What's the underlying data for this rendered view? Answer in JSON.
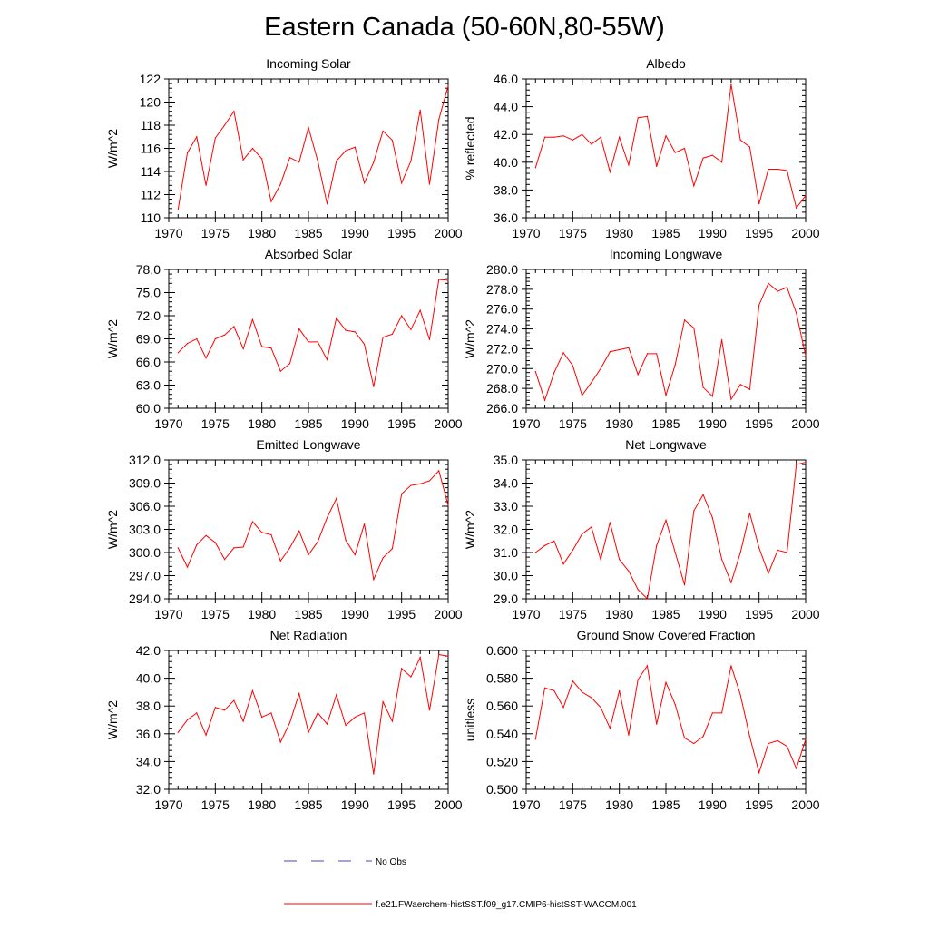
{
  "title": "Eastern Canada (50-60N,80-55W)",
  "colors": {
    "model": "#ff0000",
    "obs": "#4a4aa8",
    "axis": "#000000"
  },
  "legend": {
    "obs_label": "No Obs",
    "model_label": "f.e21.FWaerchem-histSST.f09_g17.CMIP6-histSST-WACCM.001"
  },
  "chart_data": [
    {
      "type": "line",
      "title": "Incoming Solar",
      "xlabel": "",
      "ylabel": "W/m^2",
      "xlim": [
        1970,
        2000
      ],
      "ylim": [
        110,
        122
      ],
      "xticks": [
        "1970",
        "1975",
        "1980",
        "1985",
        "1990",
        "1995",
        "2000"
      ],
      "yticks": [
        "110",
        "112",
        "114",
        "116",
        "118",
        "120",
        "122"
      ],
      "series": [
        {
          "x": [
            1971,
            1972,
            1973,
            1974,
            1975,
            1976,
            1977,
            1978,
            1979,
            1980,
            1981,
            1982,
            1983,
            1984,
            1985,
            1986,
            1987,
            1988,
            1989,
            1990,
            1991,
            1992,
            1993,
            1994,
            1995,
            1996,
            1997,
            1998,
            1999,
            2000
          ],
          "values": [
            110.7,
            115.6,
            117.0,
            112.8,
            116.9,
            118.0,
            119.2,
            115.0,
            116.0,
            115.1,
            111.4,
            112.9,
            115.2,
            114.8,
            117.8,
            114.9,
            111.2,
            114.9,
            115.8,
            116.1,
            113.0,
            114.8,
            117.5,
            116.7,
            113.0,
            114.9,
            119.3,
            112.9,
            118.5,
            121.4
          ]
        }
      ]
    },
    {
      "type": "line",
      "title": "Albedo",
      "xlabel": "",
      "ylabel": "% reflected",
      "xlim": [
        1970,
        2000
      ],
      "ylim": [
        36,
        46
      ],
      "xticks": [
        "1970",
        "1975",
        "1980",
        "1985",
        "1990",
        "1995",
        "2000"
      ],
      "yticks": [
        "36.0",
        "38.0",
        "40.0",
        "42.0",
        "44.0",
        "46.0"
      ],
      "series": [
        {
          "x": [
            1971,
            1972,
            1973,
            1974,
            1975,
            1976,
            1977,
            1978,
            1979,
            1980,
            1981,
            1982,
            1983,
            1984,
            1985,
            1986,
            1987,
            1988,
            1989,
            1990,
            1991,
            1992,
            1993,
            1994,
            1995,
            1996,
            1997,
            1998,
            1999,
            2000
          ],
          "values": [
            39.6,
            41.8,
            41.8,
            41.9,
            41.6,
            42.0,
            41.3,
            41.8,
            39.3,
            41.8,
            39.8,
            43.2,
            43.3,
            39.7,
            41.9,
            40.7,
            41.0,
            38.3,
            40.3,
            40.5,
            40.0,
            45.6,
            41.6,
            41.1,
            37.0,
            39.5,
            39.5,
            39.4,
            36.7,
            37.6
          ]
        }
      ]
    },
    {
      "type": "line",
      "title": "Absorbed Solar",
      "xlabel": "",
      "ylabel": "W/m^2",
      "xlim": [
        1970,
        2000
      ],
      "ylim": [
        60,
        78
      ],
      "xticks": [
        "1970",
        "1975",
        "1980",
        "1985",
        "1990",
        "1995",
        "2000"
      ],
      "yticks": [
        "60.0",
        "63.0",
        "66.0",
        "69.0",
        "72.0",
        "75.0",
        "78.0"
      ],
      "series": [
        {
          "x": [
            1971,
            1972,
            1973,
            1974,
            1975,
            1976,
            1977,
            1978,
            1979,
            1980,
            1981,
            1982,
            1983,
            1984,
            1985,
            1986,
            1987,
            1988,
            1989,
            1990,
            1991,
            1992,
            1993,
            1994,
            1995,
            1996,
            1997,
            1998,
            1999,
            2000
          ],
          "values": [
            67.2,
            68.4,
            69.0,
            66.5,
            69.0,
            69.5,
            70.6,
            67.7,
            71.5,
            68.0,
            67.8,
            64.8,
            65.8,
            70.3,
            68.6,
            68.6,
            66.3,
            71.7,
            70.1,
            69.9,
            68.3,
            62.8,
            69.2,
            69.6,
            72.0,
            70.2,
            72.7,
            68.9,
            76.7,
            76.6
          ]
        }
      ]
    },
    {
      "type": "line",
      "title": "Incoming Longwave",
      "xlabel": "",
      "ylabel": "W/m^2",
      "xlim": [
        1970,
        2000
      ],
      "ylim": [
        266,
        280
      ],
      "xticks": [
        "1970",
        "1975",
        "1980",
        "1985",
        "1990",
        "1995",
        "2000"
      ],
      "yticks": [
        "266.0",
        "268.0",
        "270.0",
        "272.0",
        "274.0",
        "276.0",
        "278.0",
        "280.0"
      ],
      "series": [
        {
          "x": [
            1971,
            1972,
            1973,
            1974,
            1975,
            1976,
            1977,
            1978,
            1979,
            1980,
            1981,
            1982,
            1983,
            1984,
            1985,
            1986,
            1987,
            1988,
            1989,
            1990,
            1991,
            1992,
            1993,
            1994,
            1995,
            1996,
            1997,
            1998,
            1999,
            2000
          ],
          "values": [
            269.7,
            266.8,
            269.6,
            271.6,
            270.3,
            267.3,
            268.6,
            270.0,
            271.7,
            271.9,
            272.1,
            269.4,
            271.5,
            271.5,
            267.3,
            270.4,
            274.9,
            274.1,
            268.1,
            267.2,
            272.9,
            266.9,
            268.4,
            267.9,
            276.4,
            278.6,
            277.8,
            278.2,
            275.6,
            271.3
          ]
        }
      ]
    },
    {
      "type": "line",
      "title": "Emitted Longwave",
      "xlabel": "",
      "ylabel": "W/m^2",
      "xlim": [
        1970,
        2000
      ],
      "ylim": [
        294,
        312
      ],
      "xticks": [
        "1970",
        "1975",
        "1980",
        "1985",
        "1990",
        "1995",
        "2000"
      ],
      "yticks": [
        "294.0",
        "297.0",
        "300.0",
        "303.0",
        "306.0",
        "309.0",
        "312.0"
      ],
      "series": [
        {
          "x": [
            1971,
            1972,
            1973,
            1974,
            1975,
            1976,
            1977,
            1978,
            1979,
            1980,
            1981,
            1982,
            1983,
            1984,
            1985,
            1986,
            1987,
            1988,
            1989,
            1990,
            1991,
            1992,
            1993,
            1994,
            1995,
            1996,
            1997,
            1998,
            1999,
            2000
          ],
          "values": [
            300.6,
            298.1,
            301.0,
            302.2,
            301.3,
            299.1,
            300.6,
            300.7,
            304.0,
            302.6,
            302.3,
            298.9,
            300.6,
            302.8,
            299.7,
            301.4,
            304.5,
            307.0,
            301.6,
            299.7,
            303.7,
            296.5,
            299.3,
            300.5,
            307.6,
            308.7,
            308.9,
            309.3,
            310.6,
            306.1
          ]
        }
      ]
    },
    {
      "type": "line",
      "title": "Net Longwave",
      "xlabel": "",
      "ylabel": "W/m^2",
      "xlim": [
        1970,
        2000
      ],
      "ylim": [
        29,
        35
      ],
      "xticks": [
        "1970",
        "1975",
        "1980",
        "1985",
        "1990",
        "1995",
        "2000"
      ],
      "yticks": [
        "29.0",
        "30.0",
        "31.0",
        "32.0",
        "33.0",
        "34.0",
        "35.0"
      ],
      "series": [
        {
          "x": [
            1971,
            1972,
            1973,
            1974,
            1975,
            1976,
            1977,
            1978,
            1979,
            1980,
            1981,
            1982,
            1983,
            1984,
            1985,
            1986,
            1987,
            1988,
            1989,
            1990,
            1991,
            1992,
            1993,
            1994,
            1995,
            1996,
            1997,
            1998,
            1999,
            2000
          ],
          "values": [
            31.0,
            31.3,
            31.5,
            30.5,
            31.1,
            31.8,
            32.1,
            30.7,
            32.3,
            30.7,
            30.2,
            29.4,
            29.0,
            31.3,
            32.4,
            31.0,
            29.6,
            32.8,
            33.5,
            32.5,
            30.7,
            29.7,
            31.0,
            32.7,
            31.2,
            30.1,
            31.1,
            31.0,
            34.8,
            34.9
          ]
        }
      ]
    },
    {
      "type": "line",
      "title": "Net Radiation",
      "xlabel": "",
      "ylabel": "W/m^2",
      "xlim": [
        1970,
        2000
      ],
      "ylim": [
        32,
        42
      ],
      "xticks": [
        "1970",
        "1975",
        "1980",
        "1985",
        "1990",
        "1995",
        "2000"
      ],
      "yticks": [
        "32.0",
        "34.0",
        "36.0",
        "38.0",
        "40.0",
        "42.0"
      ],
      "series": [
        {
          "x": [
            1971,
            1972,
            1973,
            1974,
            1975,
            1976,
            1977,
            1978,
            1979,
            1980,
            1981,
            1982,
            1983,
            1984,
            1985,
            1986,
            1987,
            1988,
            1989,
            1990,
            1991,
            1992,
            1993,
            1994,
            1995,
            1996,
            1997,
            1998,
            1999,
            2000
          ],
          "values": [
            36.1,
            37.0,
            37.5,
            35.9,
            37.9,
            37.7,
            38.4,
            36.9,
            39.1,
            37.2,
            37.5,
            35.4,
            36.8,
            38.9,
            36.1,
            37.5,
            36.7,
            38.8,
            36.6,
            37.2,
            37.5,
            33.1,
            38.3,
            36.9,
            40.7,
            40.1,
            41.5,
            37.7,
            41.7,
            41.6
          ]
        }
      ]
    },
    {
      "type": "line",
      "title": "Ground Snow Covered Fraction",
      "xlabel": "",
      "ylabel": "unitless",
      "xlim": [
        1970,
        2000
      ],
      "ylim": [
        0.5,
        0.6
      ],
      "xticks": [
        "1970",
        "1975",
        "1980",
        "1985",
        "1990",
        "1995",
        "2000"
      ],
      "yticks": [
        "0.500",
        "0.520",
        "0.540",
        "0.560",
        "0.580",
        "0.600"
      ],
      "series": [
        {
          "x": [
            1971,
            1972,
            1973,
            1974,
            1975,
            1976,
            1977,
            1978,
            1979,
            1980,
            1981,
            1982,
            1983,
            1984,
            1985,
            1986,
            1987,
            1988,
            1989,
            1990,
            1991,
            1992,
            1993,
            1994,
            1995,
            1996,
            1997,
            1998,
            1999,
            2000
          ],
          "values": [
            0.536,
            0.573,
            0.571,
            0.559,
            0.578,
            0.57,
            0.566,
            0.559,
            0.544,
            0.571,
            0.539,
            0.579,
            0.589,
            0.547,
            0.577,
            0.561,
            0.537,
            0.533,
            0.538,
            0.555,
            0.555,
            0.589,
            0.568,
            0.538,
            0.512,
            0.533,
            0.535,
            0.531,
            0.515,
            0.536
          ]
        }
      ]
    }
  ]
}
